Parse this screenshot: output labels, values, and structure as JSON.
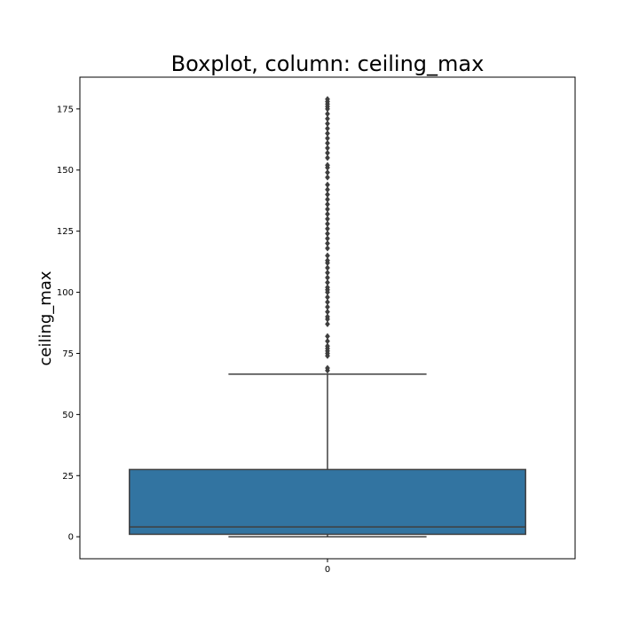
{
  "chart_data": {
    "type": "boxplot",
    "title": "Boxplot, column: ceiling_max",
    "xlabel": "",
    "ylabel": "ceiling_max",
    "categories": [
      "0"
    ],
    "ylim": [
      -9,
      188
    ],
    "yticks": [
      0,
      25,
      50,
      75,
      100,
      125,
      150,
      175
    ],
    "grid": false,
    "box": {
      "category": "0",
      "whisker_low": 0,
      "q1": 1,
      "median": 4,
      "q3": 27.5,
      "whisker_high": 66.5,
      "outliers": [
        68,
        69,
        74,
        75,
        76,
        77,
        78,
        80,
        82,
        87,
        89,
        90,
        92,
        94,
        96,
        98,
        100,
        101,
        102,
        104,
        106,
        108,
        110,
        112,
        113,
        115,
        118,
        120,
        122,
        124,
        126,
        128,
        130,
        132,
        134,
        136,
        138,
        140,
        142,
        144,
        147,
        149,
        151,
        152,
        155,
        157,
        159,
        161,
        163,
        165,
        167,
        169,
        171,
        173,
        175,
        176,
        177,
        178,
        179
      ]
    },
    "colors": {
      "box_fill": "#3274a1",
      "lines": "#3f3f3f"
    }
  }
}
